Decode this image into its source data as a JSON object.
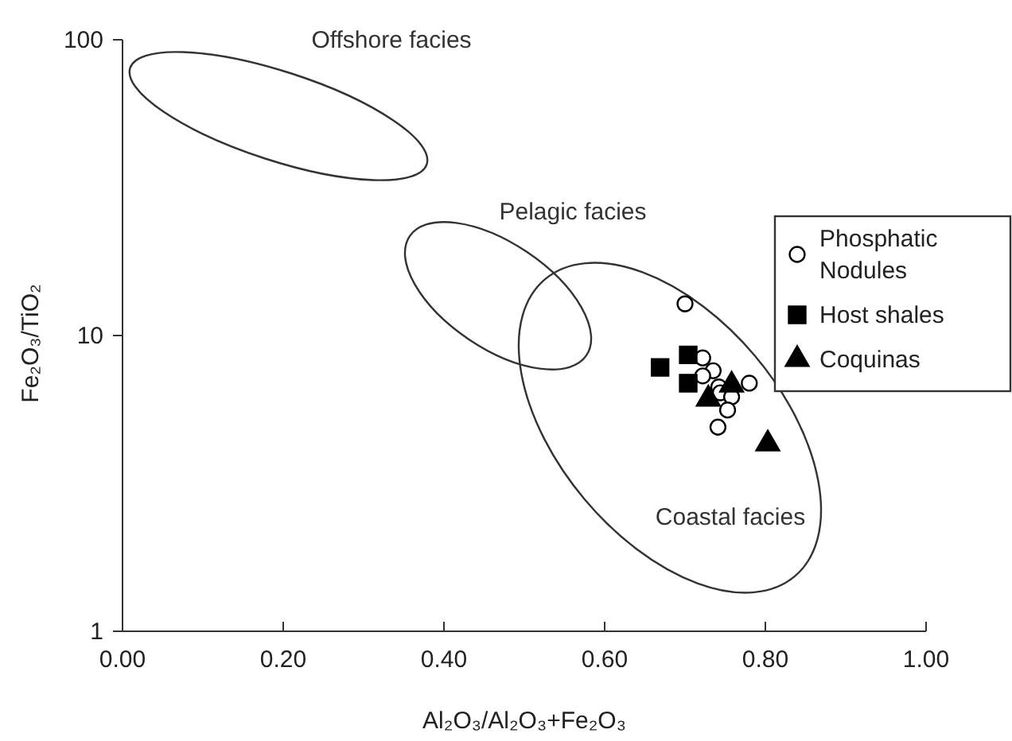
{
  "chart_data": {
    "type": "scatter",
    "xlabel": "Al₂O₃/Al₂O₃+Fe₂O₃",
    "ylabel": "Fe₂O₃/TiO₂",
    "log": "y",
    "xlim": [
      0,
      1
    ],
    "xticks": [
      {
        "value": 0,
        "label": "0.00"
      },
      {
        "value": 0.2,
        "label": "0.20"
      },
      {
        "value": 0.4,
        "label": "0.40"
      },
      {
        "value": 0.6,
        "label": "0.60"
      },
      {
        "value": 0.8,
        "label": "0.80"
      },
      {
        "value": 1,
        "label": "1.00"
      }
    ],
    "ylim": [
      1,
      100
    ],
    "yticks": [
      1,
      10,
      100
    ],
    "legend": "right",
    "grid": false,
    "series": [
      {
        "name": "Phosphatic Nodules",
        "color": "#000000",
        "marker": "circle",
        "x": [
          0.7,
          0.722,
          0.735,
          0.722,
          0.742,
          0.744,
          0.758,
          0.753,
          0.78,
          0.741
        ],
        "values": [
          12.8,
          8.4,
          7.6,
          7.3,
          6.7,
          6.4,
          6.2,
          5.6,
          6.9,
          4.9
        ]
      },
      {
        "name": "Host shales",
        "color": "#000000",
        "marker": "square",
        "x": [
          0.669,
          0.704,
          0.704
        ],
        "values": [
          7.8,
          8.6,
          6.9
        ]
      },
      {
        "name": "Coquinas",
        "color": "#000000",
        "marker": "triangle",
        "x": [
          0.729,
          0.758,
          0.803
        ],
        "values": [
          6.1,
          6.8,
          4.3
        ]
      }
    ],
    "annotations": [
      "Offshore facies",
      "Pelagic facies",
      "Coastal facies"
    ]
  }
}
